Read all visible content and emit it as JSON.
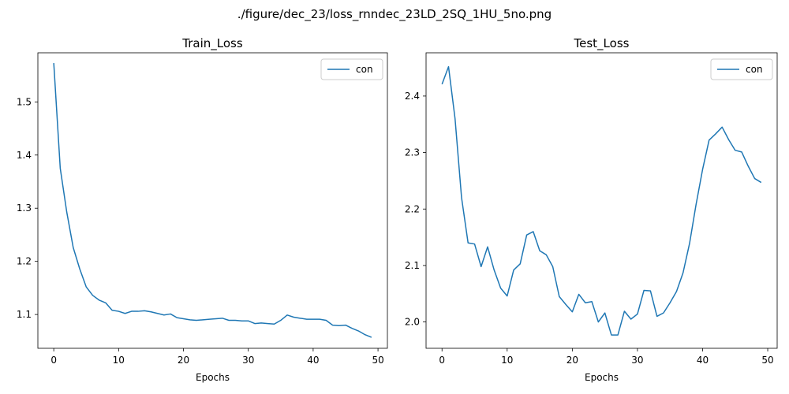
{
  "suptitle": "./figure/dec_23/loss_rnndec_23LD_2SQ_1HU_5no.png",
  "colors": {
    "series": "#1f77b4",
    "axes": "#000000",
    "legend_border": "#cccccc"
  },
  "chart_data": [
    {
      "type": "line",
      "title": "Train_Loss",
      "xlabel": "Epochs",
      "ylabel": "",
      "xlim": [
        -2.45,
        51.45
      ],
      "ylim": [
        1.0364,
        1.5924
      ],
      "xticks": [
        0,
        10,
        20,
        30,
        40,
        50
      ],
      "yticks": [
        1.1,
        1.2,
        1.3,
        1.4,
        1.5
      ],
      "ytick_labels": [
        "1.1",
        "1.2",
        "1.3",
        "1.4",
        "1.5"
      ],
      "legend": {
        "position": "upper-right",
        "entries": [
          "con"
        ]
      },
      "series": [
        {
          "name": "con",
          "x": [
            0,
            1,
            2,
            3,
            4,
            5,
            6,
            7,
            8,
            9,
            10,
            11,
            12,
            13,
            14,
            15,
            16,
            17,
            18,
            19,
            20,
            21,
            22,
            23,
            24,
            25,
            26,
            27,
            28,
            29,
            30,
            31,
            32,
            33,
            34,
            35,
            36,
            37,
            38,
            39,
            40,
            41,
            42,
            43,
            44,
            45,
            46,
            47,
            48,
            49
          ],
          "values": [
            1.573,
            1.375,
            1.293,
            1.226,
            1.186,
            1.152,
            1.136,
            1.127,
            1.122,
            1.108,
            1.106,
            1.102,
            1.106,
            1.106,
            1.107,
            1.105,
            1.102,
            1.099,
            1.101,
            1.094,
            1.092,
            1.09,
            1.089,
            1.09,
            1.091,
            1.092,
            1.093,
            1.089,
            1.089,
            1.088,
            1.088,
            1.083,
            1.084,
            1.083,
            1.082,
            1.089,
            1.099,
            1.095,
            1.093,
            1.091,
            1.091,
            1.091,
            1.089,
            1.08,
            1.079,
            1.08,
            1.074,
            1.069,
            1.062,
            1.057
          ]
        }
      ]
    },
    {
      "type": "line",
      "title": "Test_Loss",
      "xlabel": "Epochs",
      "ylabel": "",
      "xlim": [
        -2.45,
        51.45
      ],
      "ylim": [
        1.9534,
        2.4766
      ],
      "xticks": [
        0,
        10,
        20,
        30,
        40,
        50
      ],
      "yticks": [
        2.0,
        2.1,
        2.2,
        2.3,
        2.4
      ],
      "ytick_labels": [
        "2.0",
        "2.1",
        "2.2",
        "2.3",
        "2.4"
      ],
      "legend": {
        "position": "upper-right",
        "entries": [
          "con"
        ]
      },
      "series": [
        {
          "name": "con",
          "x": [
            0,
            1,
            2,
            3,
            4,
            5,
            6,
            7,
            8,
            9,
            10,
            11,
            12,
            13,
            14,
            15,
            16,
            17,
            18,
            19,
            20,
            21,
            22,
            23,
            24,
            25,
            26,
            27,
            28,
            29,
            30,
            31,
            32,
            33,
            34,
            35,
            36,
            37,
            38,
            39,
            40,
            41,
            42,
            43,
            44,
            45,
            46,
            47,
            48,
            49
          ],
          "values": [
            2.421,
            2.452,
            2.36,
            2.22,
            2.14,
            2.138,
            2.098,
            2.133,
            2.092,
            2.06,
            2.046,
            2.092,
            2.103,
            2.154,
            2.16,
            2.126,
            2.119,
            2.098,
            2.045,
            2.031,
            2.018,
            2.049,
            2.034,
            2.036,
            2.0,
            2.016,
            1.977,
            1.977,
            2.019,
            2.005,
            2.014,
            2.056,
            2.055,
            2.01,
            2.016,
            2.034,
            2.054,
            2.087,
            2.139,
            2.208,
            2.27,
            2.322,
            2.333,
            2.345,
            2.323,
            2.304,
            2.301,
            2.276,
            2.254,
            2.247
          ]
        }
      ]
    }
  ]
}
